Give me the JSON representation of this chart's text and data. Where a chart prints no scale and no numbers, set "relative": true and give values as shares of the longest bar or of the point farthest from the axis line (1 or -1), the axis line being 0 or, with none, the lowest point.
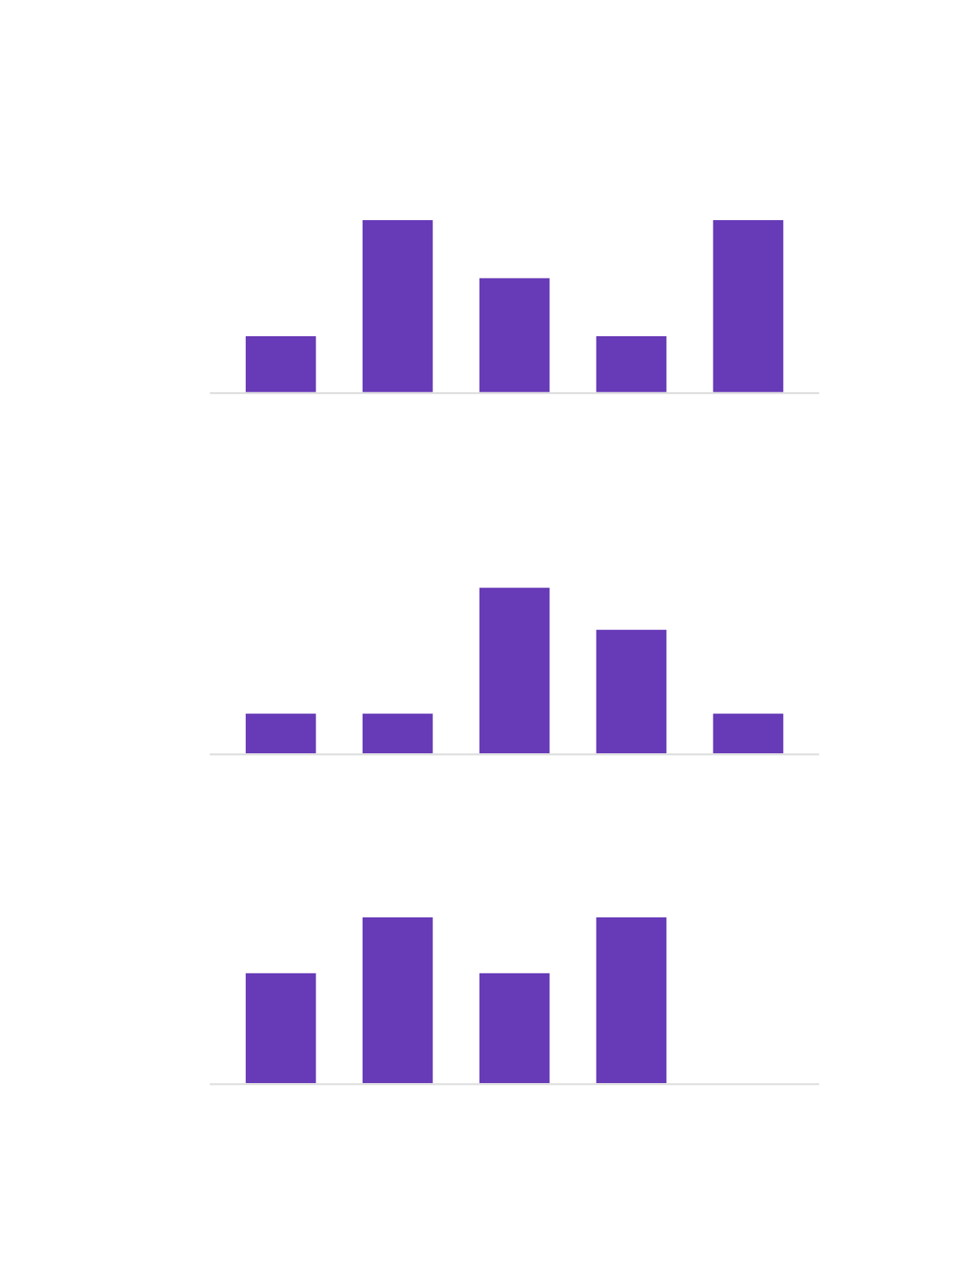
{
  "chart_data": [
    {
      "type": "bar",
      "relative": true,
      "categories": [
        null,
        null,
        null,
        null,
        null
      ],
      "color": "#673ab7",
      "values": [
        0.333,
        1,
        0.667,
        0.333,
        1
      ]
    },
    {
      "type": "bar",
      "relative": true,
      "categories": [
        null,
        null,
        null,
        null,
        null
      ],
      "color": "#673ab7",
      "values": [
        0.25,
        0.25,
        1,
        0.75,
        0.25
      ]
    },
    {
      "type": "bar",
      "relative": true,
      "categories": [
        null,
        null,
        null,
        null,
        null
      ],
      "color": "#673ab7",
      "values": [
        0.667,
        1,
        0.667,
        1,
        null
      ]
    }
  ]
}
